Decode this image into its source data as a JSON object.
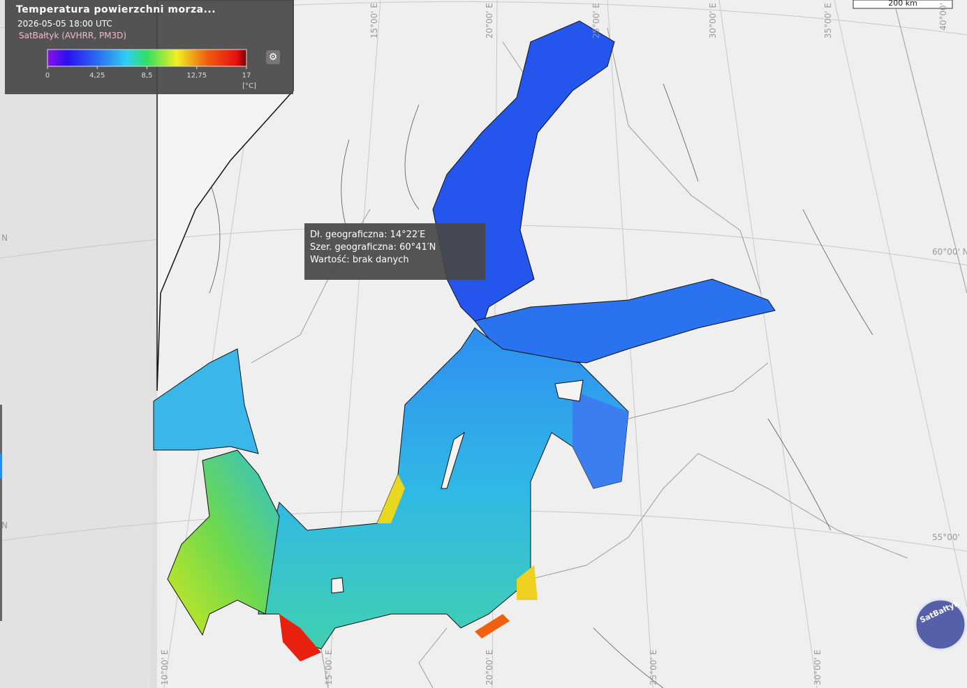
{
  "legend_panel": {
    "title": "Temperatura powierzchni morza...",
    "datetime": "2026-05-05 18:00 UTC",
    "source": "SatBałtyk (AVHRR, PM3D)",
    "colorbar": {
      "range": [
        0,
        17
      ],
      "ticks": [
        0,
        {
          "value": 4.25,
          "label": "4,25"
        },
        {
          "value": 8.5,
          "label": "8,5"
        },
        {
          "value": 12.75,
          "label": "12,75"
        },
        17
      ],
      "unit": "[°C]"
    }
  },
  "tooltip": {
    "lines": [
      "Dł. geograficzna: 14°22′E",
      "Szer. geograficzna: 60°41′N",
      "Wartość: brak danych"
    ]
  },
  "map": {
    "scale_label": "200 km",
    "logo": "SatBałtyk",
    "graticule_labels": {
      "top": [
        "15°00' E",
        "20°00' E",
        "25°00' E",
        "30°00' E",
        "35°00' E",
        "40°00'"
      ],
      "right": [
        "60°00' N",
        "55°00'"
      ],
      "bottom": [
        "10°00' E",
        "15°00' E",
        "20°00' E",
        "25°00' E",
        "30°00' E"
      ],
      "left": [
        "N",
        "N"
      ]
    }
  }
}
